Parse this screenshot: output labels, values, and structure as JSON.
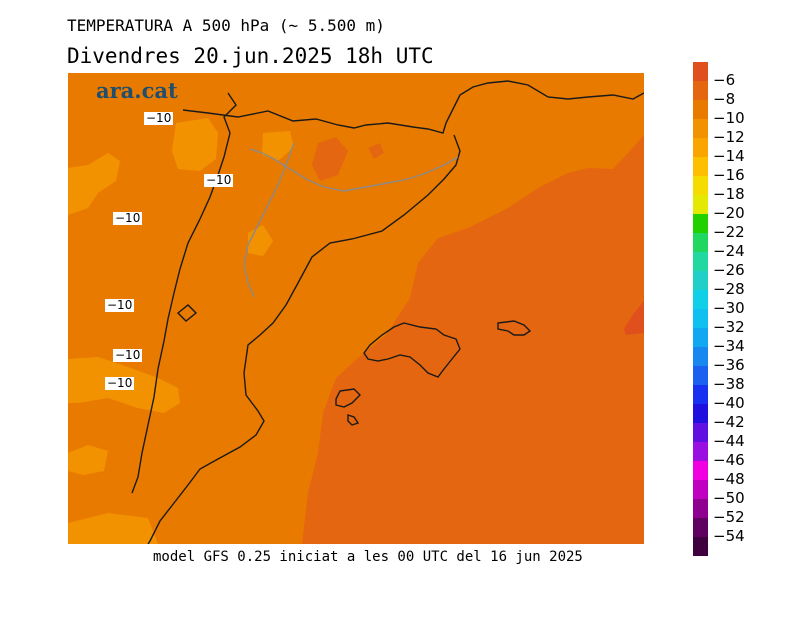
{
  "header": {
    "title": "TEMPERATURA A 500 hPa (~ 5.500 m)",
    "subtitle": "Divendres  20.jun.2025  18h  UTC"
  },
  "footer": {
    "text": "model GFS 0.25 iniciat a les 00 UTC del 16 jun 2025"
  },
  "logo": {
    "text": "ara.cat"
  },
  "map": {
    "contour_labels": [
      "−10",
      "−10",
      "−10",
      "−10",
      "−10",
      "−10"
    ]
  },
  "legend": {
    "labels": [
      "−6",
      "−8",
      "−10",
      "−12",
      "−14",
      "−16",
      "−18",
      "−20",
      "−22",
      "−24",
      "−26",
      "−28",
      "−30",
      "−32",
      "−34",
      "−36",
      "−38",
      "−40",
      "−42",
      "−44",
      "−46",
      "−48",
      "−50",
      "−52",
      "−54"
    ],
    "colors": [
      "#e0501c",
      "#e56610",
      "#e97a00",
      "#f39200",
      "#faa400",
      "#fdbf00",
      "#f5dc00",
      "#e5e800",
      "#22d000",
      "#20d860",
      "#20d8a0",
      "#20d0c8",
      "#10d0e8",
      "#10c0f0",
      "#10a8f0",
      "#1888f0",
      "#1c60f0",
      "#1830f0",
      "#2010e0",
      "#6010e0",
      "#9a10e0",
      "#f000e0",
      "#c000c0",
      "#900090",
      "#600060",
      "#400040"
    ]
  }
}
